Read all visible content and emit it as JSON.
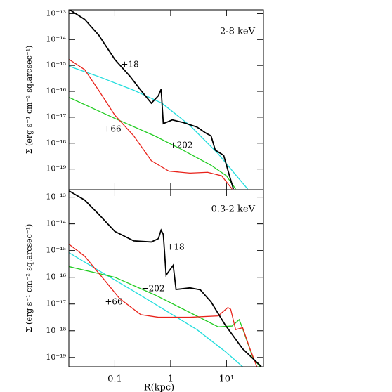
{
  "chart_data": [
    {
      "type": "line",
      "title": "2-8 keV",
      "ylabel": "Σ (erg s⁻¹ cm⁻² sq.arcsec⁻¹)",
      "xscale": "log",
      "yscale": "log",
      "xlim": [
        0.015,
        46
      ],
      "ylim": [
        1.6e-20,
        1.4e-13
      ],
      "xticks": [
        0.1,
        1,
        10
      ],
      "yticks": [
        {
          "value": 1e-13,
          "label": "10⁻¹³"
        },
        {
          "value": 1e-14,
          "label": "10⁻¹⁴"
        },
        {
          "value": 1e-15,
          "label": "10⁻¹⁵"
        },
        {
          "value": 1e-16,
          "label": "10⁻¹⁶"
        },
        {
          "value": 1e-17,
          "label": "10⁻¹⁷"
        },
        {
          "value": 1e-18,
          "label": "10⁻¹⁸"
        },
        {
          "value": 1e-19,
          "label": "10⁻¹⁹"
        }
      ],
      "annotations": [
        "+18",
        "+66",
        "+202"
      ],
      "series": [
        {
          "color": "#22dddd",
          "x": [
            0.0152,
            0.0513,
            0.219,
            0.696,
            2.22,
            7.1,
            14.6,
            24
          ],
          "values": [
            9.3e-16,
            3.7e-16,
            1.1e-16,
            3.5e-17,
            4.8e-18,
            3.9e-19,
            6e-20,
            1.7e-20
          ]
        },
        {
          "color": "#22cc22",
          "x": [
            0.0152,
            0.1,
            0.521,
            1.66,
            5.3,
            10,
            14.6
          ],
          "values": [
            5.8e-17,
            9e-18,
            1.9e-18,
            5.4e-19,
            1.4e-19,
            5.5e-20,
            1.7e-20
          ]
        },
        {
          "color": "#e8221a",
          "x": [
            0.0152,
            0.0288,
            0.0513,
            0.1,
            0.219,
            0.451,
            0.93,
            2.22,
            4.6,
            8.2,
            12.6
          ],
          "values": [
            1.7e-15,
            6.9e-16,
            1.1e-16,
            1.2e-17,
            1.9e-18,
            2.1e-19,
            8.3e-20,
            7e-20,
            7.5e-20,
            5.5e-20,
            1.7e-20
          ]
        },
        {
          "color": "#000000",
          "x": [
            0.0152,
            0.0288,
            0.0513,
            0.1,
            0.189,
            0.292,
            0.451,
            0.603,
            0.675,
            0.739,
            1.07,
            1.66,
            2.96,
            4.2,
            5.3,
            6.3,
            8.9,
            11.2,
            13.3
          ],
          "values": [
            1.45e-13,
            6e-14,
            1.5e-14,
            1.7e-15,
            3.7e-16,
            1.1e-16,
            3.5e-17,
            6.8e-17,
            1.2e-16,
            5.7e-18,
            7.9e-18,
            6.3e-18,
            4.2e-18,
            2.5e-18,
            1.9e-18,
            5.4e-19,
            3.4e-19,
            6e-20,
            1.7e-20
          ]
        }
      ]
    },
    {
      "type": "line",
      "title": "0.3-2 keV",
      "ylabel": "Σ (erg s⁻¹ cm⁻² sq.arcsec⁻¹)",
      "xlabel": "R(kpc)",
      "xscale": "log",
      "yscale": "log",
      "xlim": [
        0.015,
        46
      ],
      "ylim": [
        4.5e-20,
        1.9e-13
      ],
      "xticks": [
        0.1,
        1,
        {
          "value": 10,
          "label": "10¹"
        }
      ],
      "yticks": [
        {
          "value": 1e-13,
          "label": "10⁻¹³"
        },
        {
          "value": 1e-14,
          "label": "10⁻¹⁴"
        },
        {
          "value": 1e-15,
          "label": "10⁻¹⁵"
        },
        {
          "value": 1e-16,
          "label": "10⁻¹⁶"
        },
        {
          "value": 1e-17,
          "label": "10⁻¹⁷"
        },
        {
          "value": 1e-18,
          "label": "10⁻¹⁸"
        },
        {
          "value": 1e-19,
          "label": "10⁻¹⁹"
        }
      ],
      "annotations": [
        "+18",
        "+202",
        "+66"
      ],
      "series": [
        {
          "color": "#22dddd",
          "x": [
            0.0152,
            0.0513,
            0.219,
            0.93,
            2.96,
            9.4,
            19.5
          ],
          "values": [
            8.3e-16,
            1.8e-16,
            3e-17,
            4.8e-18,
            1.1e-18,
            1.7e-19,
            4.5e-20
          ]
        },
        {
          "color": "#22cc22",
          "x": [
            0.0152,
            0.1,
            0.521,
            2.22,
            7.1,
            12.6,
            16.9,
            19.5,
            30,
            40
          ],
          "values": [
            2.5e-16,
            1e-16,
            2.2e-17,
            4.8e-18,
            1.4e-18,
            1.5e-18,
            2.6e-18,
            1.2e-18,
            9.3e-20,
            4.5e-20
          ]
        },
        {
          "color": "#e8221a",
          "x": [
            0.0152,
            0.0288,
            0.0593,
            0.122,
            0.292,
            0.603,
            2.22,
            7.1,
            10.6,
            11.9,
            14.6,
            19.5,
            26,
            35
          ],
          "values": [
            1.7e-15,
            6.2e-16,
            1e-16,
            1.6e-17,
            4e-18,
            3.2e-18,
            3.2e-18,
            3.6e-18,
            7.4e-18,
            6.4e-18,
            1.1e-18,
            1.3e-18,
            2.3e-19,
            4.5e-20
          ]
        },
        {
          "color": "#000000",
          "x": [
            0.0152,
            0.0288,
            0.0513,
            0.1,
            0.219,
            0.451,
            0.603,
            0.675,
            0.739,
            0.83,
            1.11,
            1.25,
            2.22,
            3.4,
            5.3,
            9.4,
            19.5,
            42
          ],
          "values": [
            1.7e-13,
            7.8e-14,
            2.3e-14,
            5.2e-15,
            2.3e-15,
            2.1e-15,
            2.8e-15,
            5.8e-15,
            4e-15,
            1.2e-16,
            2.8e-16,
            3.5e-17,
            4e-17,
            3.4e-17,
            1.2e-17,
            1.7e-18,
            2.1e-19,
            4.6e-20
          ]
        }
      ]
    }
  ]
}
